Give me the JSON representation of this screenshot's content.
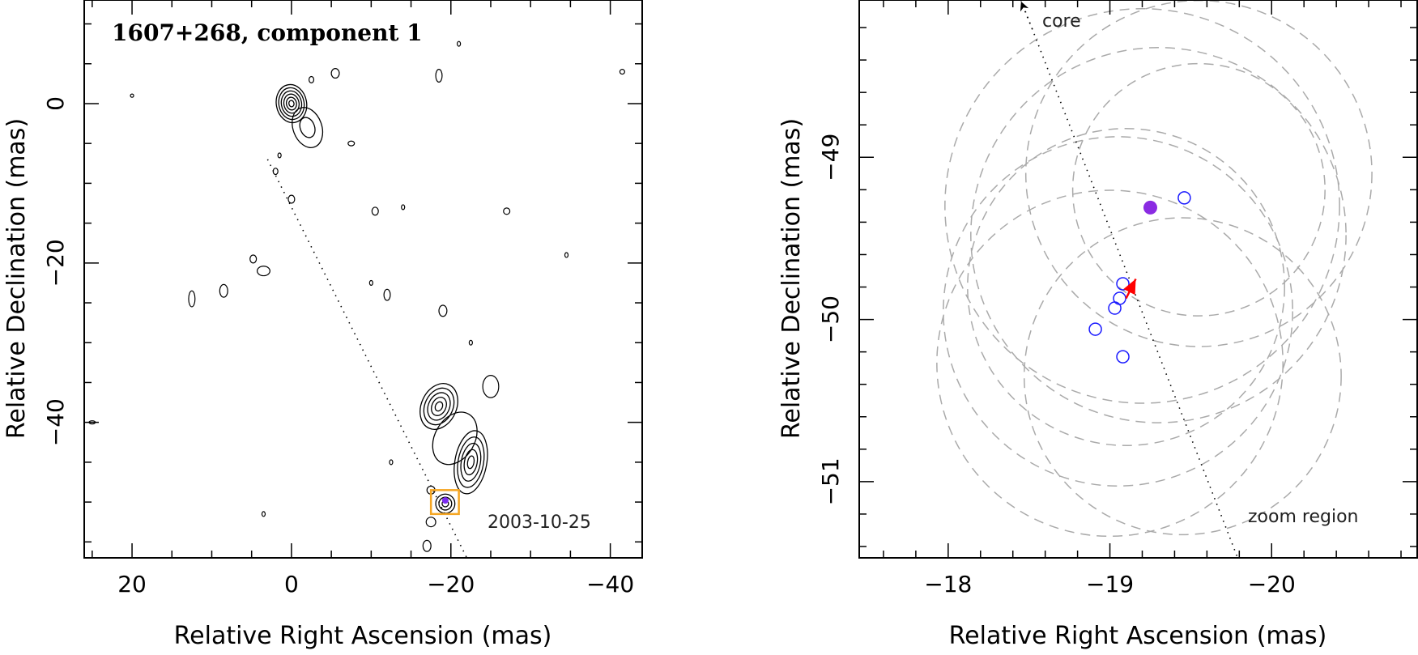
{
  "chart_data": [
    {
      "type": "contour",
      "title": "1607+268, component 1",
      "annotation": "2003-10-25",
      "xlabel": "Relative Right Ascension (mas)",
      "ylabel": "Relative Declination (mas)",
      "xlim": [
        26,
        -44
      ],
      "ylim": [
        -57,
        13
      ],
      "x_ticks": [
        20,
        0,
        -20,
        -40
      ],
      "x_tick_labels": [
        "20",
        "0",
        "−20",
        "−40"
      ],
      "y_ticks": [
        0,
        -20,
        -40
      ],
      "y_tick_labels": [
        "0",
        "−20",
        "−40"
      ],
      "colors": {
        "contour": "#000000",
        "zoom_box": "#f5a623",
        "marker": "#7b2cf0",
        "path": "#000000"
      },
      "trajectory": {
        "from": [
          3,
          -7
        ],
        "to": [
          -22,
          -57
        ]
      },
      "zoom_box": {
        "x": [
          -17.5,
          -21
        ],
        "y": [
          -48.5,
          -51.5
        ]
      },
      "marker": {
        "x": -19.3,
        "y": -49.8
      },
      "features": [
        {
          "name": "core",
          "x": 0,
          "y": 0,
          "sx": 1.9,
          "sy": 2.4,
          "levels": 6,
          "rot": -10
        },
        {
          "name": "core-tail",
          "x": -2,
          "y": -3,
          "sx": 1.8,
          "sy": 2.6,
          "levels": 2,
          "rot": -20
        },
        {
          "name": "component-north",
          "x": -18.5,
          "y": -38,
          "sx": 2.2,
          "sy": 3.0,
          "levels": 5,
          "rot": 25
        },
        {
          "name": "component-south",
          "x": -22.5,
          "y": -45,
          "sx": 2.0,
          "sy": 4.0,
          "levels": 5,
          "rot": 10
        },
        {
          "name": "component-bend",
          "x": -20.5,
          "y": -42,
          "sx": 2.5,
          "sy": 3.5,
          "levels": 1,
          "rot": 30
        },
        {
          "name": "component-tip",
          "x": -19.3,
          "y": -50.2,
          "sx": 1.2,
          "sy": 1.2,
          "levels": 3,
          "rot": 0
        }
      ],
      "blobs": [
        [
          20,
          1,
          0.2,
          0.2
        ],
        [
          -41.5,
          4,
          0.3,
          0.3
        ],
        [
          -21,
          7.5,
          0.2,
          0.3
        ],
        [
          -18.5,
          3.5,
          0.4,
          0.8
        ],
        [
          -5.5,
          3.8,
          0.5,
          0.6
        ],
        [
          -2.5,
          3.0,
          0.3,
          0.4
        ],
        [
          -7.5,
          -5,
          0.4,
          0.3
        ],
        [
          1.5,
          -6.5,
          0.2,
          0.3
        ],
        [
          2,
          -8.5,
          0.3,
          0.4
        ],
        [
          0,
          -12,
          0.4,
          0.5
        ],
        [
          -10.5,
          -13.5,
          0.4,
          0.5
        ],
        [
          -14,
          -13,
          0.2,
          0.3
        ],
        [
          -27,
          -13.5,
          0.4,
          0.4
        ],
        [
          -34.5,
          -19,
          0.2,
          0.3
        ],
        [
          3.5,
          -21,
          0.8,
          0.6
        ],
        [
          4.8,
          -19.5,
          0.4,
          0.5
        ],
        [
          -10,
          -22.5,
          0.2,
          0.3
        ],
        [
          -12,
          -24,
          0.4,
          0.7
        ],
        [
          8.5,
          -23.5,
          0.5,
          0.8
        ],
        [
          12.5,
          -24.5,
          0.4,
          1.0
        ],
        [
          -19,
          -26,
          0.5,
          0.7
        ],
        [
          -22.5,
          -30,
          0.2,
          0.3
        ],
        [
          -25,
          -35.5,
          1.0,
          1.4
        ],
        [
          -12.5,
          -45,
          0.2,
          0.3
        ],
        [
          -17.5,
          -48.5,
          0.5,
          0.5
        ],
        [
          -17.5,
          -52.5,
          0.6,
          0.6
        ],
        [
          3.5,
          -51.5,
          0.2,
          0.3
        ],
        [
          -17,
          -55.5,
          0.5,
          0.7
        ],
        [
          25,
          -40,
          0.4,
          0.2
        ]
      ]
    },
    {
      "type": "scatter",
      "annotation_top": "core",
      "annotation_bottom": "zoom region",
      "xlabel": "Relative Right Ascension (mas)",
      "ylabel": "Relative Declination (mas)",
      "xlim": [
        -17.45,
        -20.9
      ],
      "ylim": [
        -51.47,
        -48.03
      ],
      "x_ticks": [
        -18,
        -19,
        -20
      ],
      "x_tick_labels": [
        "−18",
        "−19",
        "−20"
      ],
      "y_ticks": [
        -49,
        -50,
        -51
      ],
      "y_tick_labels": [
        "−49",
        "−50",
        "−51"
      ],
      "colors": {
        "circles": "#aaaaaa",
        "open_points": "#1a1aff",
        "filled_point": "#8a2be2",
        "arrow": "#ff0000",
        "path": "#000000"
      },
      "trajectory": {
        "from": [
          -18.45,
          -48.03
        ],
        "to": [
          -19.79,
          -51.47
        ]
      },
      "error_circles": [
        {
          "x": -19.55,
          "y": -49.1,
          "r": 1.07
        },
        {
          "x": -19.55,
          "y": -49.2,
          "r": 0.78
        },
        {
          "x": -19.2,
          "y": -49.3,
          "r": 1.22
        },
        {
          "x": -19.3,
          "y": -49.48,
          "r": 1.16
        },
        {
          "x": -19.1,
          "y": -49.8,
          "r": 0.98
        },
        {
          "x": -19.05,
          "y": -49.95,
          "r": 1.08
        },
        {
          "x": -19.45,
          "y": -50.35,
          "r": 0.98
        },
        {
          "x": -19.0,
          "y": -50.27,
          "r": 1.07
        }
      ],
      "points_open": [
        {
          "x": -19.46,
          "y": -49.25
        },
        {
          "x": -19.08,
          "y": -49.78
        },
        {
          "x": -19.06,
          "y": -49.87
        },
        {
          "x": -19.03,
          "y": -49.93
        },
        {
          "x": -18.91,
          "y": -50.06
        },
        {
          "x": -19.08,
          "y": -50.23
        }
      ],
      "point_filled": {
        "x": -19.25,
        "y": -49.31
      },
      "velocity_arrow": {
        "from": [
          -19.1,
          -49.87
        ],
        "to": [
          -19.16,
          -49.75
        ]
      }
    }
  ]
}
